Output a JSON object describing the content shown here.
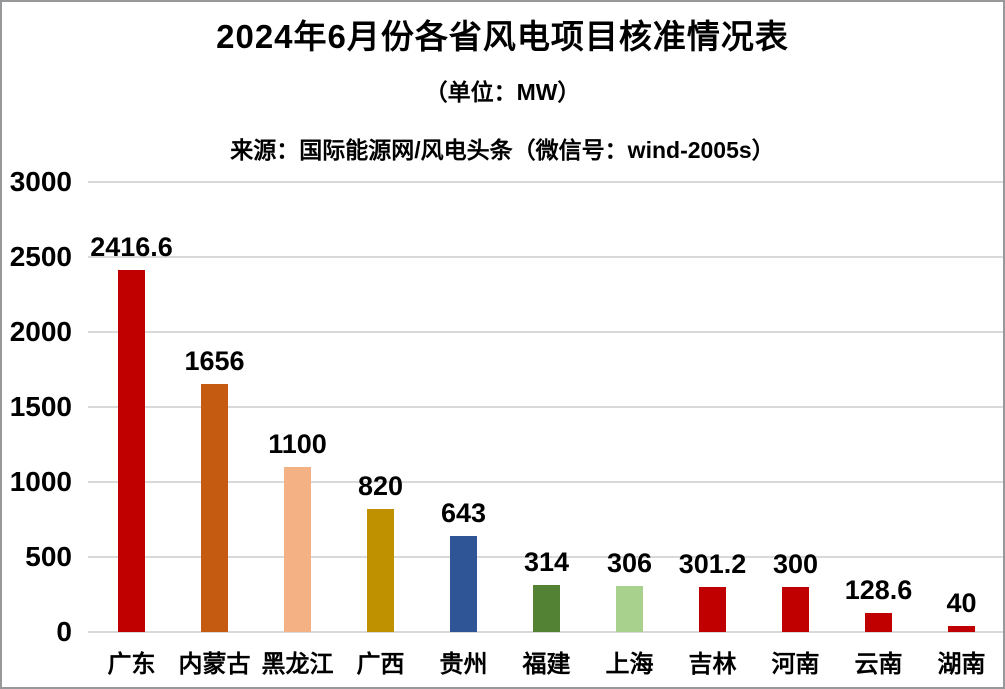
{
  "chart_data": {
    "type": "bar",
    "title": "2024年6月份各省风电项目核准情况表",
    "subtitle": "（单位：MW）",
    "source": "来源：国际能源网/风电头条（微信号：wind-2005s）",
    "unit": "MW",
    "categories": [
      "广东",
      "内蒙古",
      "黑龙江",
      "广西",
      "贵州",
      "福建",
      "上海",
      "吉林",
      "河南",
      "云南",
      "湖南"
    ],
    "values": [
      2416.6,
      1656,
      1100,
      820,
      643,
      314,
      306,
      301.2,
      300,
      128.6,
      40
    ],
    "value_labels": [
      "2416.6",
      "1656",
      "1100",
      "820",
      "643",
      "314",
      "306",
      "301.2",
      "300",
      "128.6",
      "40"
    ],
    "bar_colors": [
      "#c00000",
      "#c55a11",
      "#f4b183",
      "#bf9000",
      "#2f5597",
      "#548235",
      "#a9d18e",
      "#c00000",
      "#c00000",
      "#c00000",
      "#c00000"
    ],
    "yticks": [
      0,
      500,
      1000,
      1500,
      2000,
      2500,
      3000
    ],
    "ylim": [
      0,
      3000
    ],
    "xlabel": "",
    "ylabel": "",
    "grid": true,
    "legend": false,
    "colors": {
      "text": "#000000",
      "gridline": "#d9d9d9",
      "background": "#ffffff",
      "border": "#97989a"
    }
  }
}
